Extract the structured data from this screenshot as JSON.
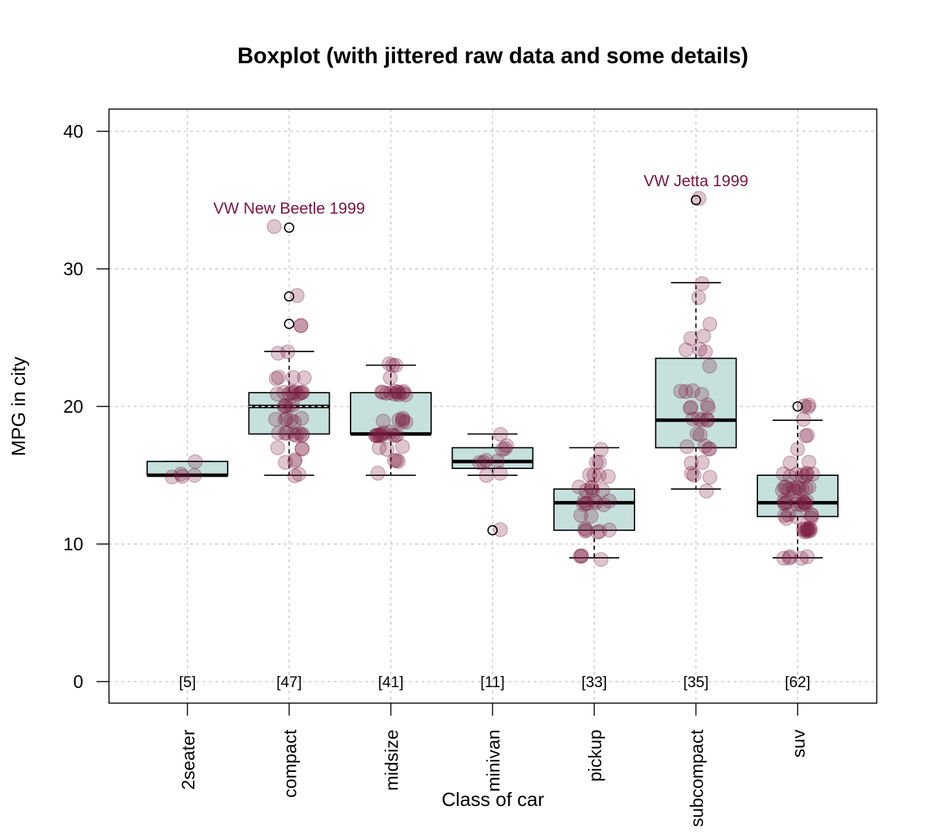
{
  "chart_data": {
    "type": "boxplot",
    "title": "Boxplot (with jittered raw data and some details)",
    "xlabel": "Class of car",
    "ylabel": "MPG in city",
    "ylim": [
      -1.6,
      41.6
    ],
    "yticks": [
      0,
      10,
      20,
      30,
      40
    ],
    "grid": true,
    "colors": {
      "box_fill": "#c5e0dd",
      "points": "#7a1a3f",
      "annotation": "#7b1540"
    },
    "categories": [
      "2seater",
      "compact",
      "midsize",
      "minivan",
      "pickup",
      "subcompact",
      "suv"
    ],
    "counts_labels": [
      "[5]",
      "[47]",
      "[41]",
      "[11]",
      "[33]",
      "[35]",
      "[62]"
    ],
    "boxes": [
      {
        "min": 15,
        "q1": 15,
        "median": 15,
        "q3": 16,
        "max": 16,
        "outliers": []
      },
      {
        "min": 15,
        "q1": 18,
        "median": 20,
        "q3": 21,
        "max": 24,
        "outliers": [
          26,
          28,
          33
        ],
        "mean_line": 20
      },
      {
        "min": 15,
        "q1": 18,
        "median": 18,
        "q3": 21,
        "max": 23,
        "outliers": []
      },
      {
        "min": 15,
        "q1": 15.5,
        "median": 16,
        "q3": 17,
        "max": 18,
        "outliers": [
          11
        ]
      },
      {
        "min": 9,
        "q1": 11,
        "median": 13,
        "q3": 14,
        "max": 17,
        "outliers": []
      },
      {
        "min": 14,
        "q1": 17,
        "median": 19,
        "q3": 23.5,
        "max": 29,
        "outliers": [
          35
        ]
      },
      {
        "min": 9,
        "q1": 12,
        "median": 13,
        "q3": 15,
        "max": 19,
        "outliers": [
          20
        ]
      }
    ],
    "raw_value_counts": [
      {
        "15": 4,
        "16": 1
      },
      {
        "15": 2,
        "16": 3,
        "17": 3,
        "18": 8,
        "19": 6,
        "20": 5,
        "21": 10,
        "22": 4,
        "24": 2,
        "26": 2,
        "28": 1,
        "33": 1
      },
      {
        "15": 1,
        "16": 3,
        "17": 3,
        "18": 12,
        "19": 6,
        "21": 12,
        "22": 1,
        "23": 3
      },
      {
        "11": 1,
        "15": 2,
        "16": 4,
        "17": 3,
        "18": 1
      },
      {
        "9": 4,
        "11": 6,
        "12": 2,
        "13": 8,
        "14": 6,
        "15": 4,
        "16": 2,
        "17": 1
      },
      {
        "14": 1,
        "15": 3,
        "16": 2,
        "17": 4,
        "18": 2,
        "19": 5,
        "20": 4,
        "21": 4,
        "23": 1,
        "24": 3,
        "25": 2,
        "26": 1,
        "28": 1,
        "29": 1,
        "35": 1
      },
      {
        "9": 5,
        "11": 10,
        "12": 7,
        "13": 12,
        "14": 11,
        "15": 8,
        "16": 2,
        "17": 1,
        "18": 2,
        "19": 1,
        "20": 3
      }
    ],
    "annotations": [
      {
        "text": "VW New Beetle 1999",
        "category": "compact",
        "y": 33
      },
      {
        "text": "VW Jetta 1999",
        "category": "subcompact",
        "y": 35
      }
    ]
  }
}
